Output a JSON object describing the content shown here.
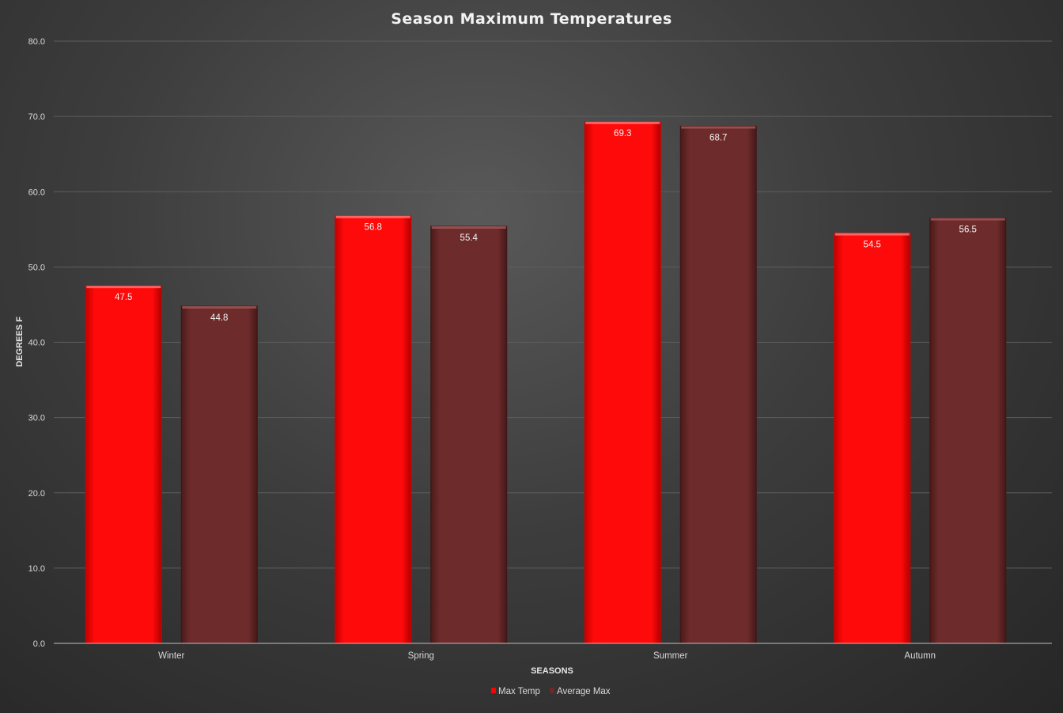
{
  "chart_data": {
    "type": "bar",
    "title": "Season Maximum Temperatures",
    "xlabel": "SEASONS",
    "ylabel": "DEGREES F",
    "categories": [
      "Winter",
      "Spring",
      "Summer",
      "Autumn"
    ],
    "series": [
      {
        "name": "Max Temp",
        "color": "#ff0000",
        "values": [
          47.5,
          56.8,
          69.3,
          54.5
        ]
      },
      {
        "name": "Average Max",
        "color": "#6b2a2a",
        "values": [
          44.8,
          55.4,
          68.7,
          56.5
        ]
      }
    ],
    "ylim": [
      0,
      80
    ],
    "yticks": [
      "0.0",
      "10.0",
      "20.0",
      "30.0",
      "40.0",
      "50.0",
      "60.0",
      "70.0",
      "80.0"
    ],
    "grid": true,
    "legend_position": "bottom"
  }
}
